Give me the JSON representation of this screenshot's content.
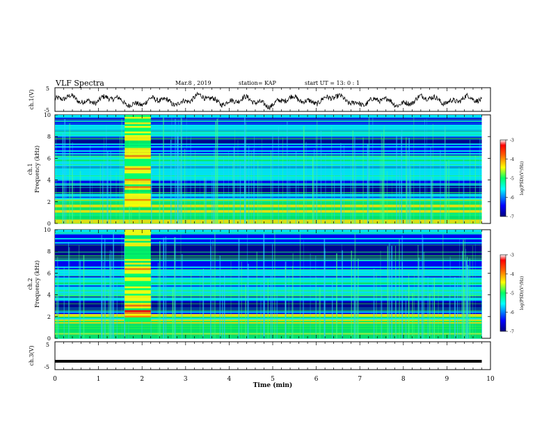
{
  "header": {
    "title": "VLF Spectra",
    "date": "Mar.8 , 2019",
    "station": "station= KAP",
    "start": "start UT = 13: 0 : 1"
  },
  "colors": {
    "spectrogram_background": "#0a1f8f",
    "trace": "#000000",
    "colormap": [
      "#00008f",
      "#0000ff",
      "#00ffff",
      "#00ff66",
      "#ffff00",
      "#ff8000",
      "#ff0000",
      "#ffffff"
    ]
  },
  "chart_data": [
    {
      "type": "line",
      "name": "ch1-waveform",
      "ylabel": "ch.1(V)",
      "ylim": [
        -5,
        5
      ],
      "yticks": [
        "5",
        "-5"
      ],
      "x_range": [
        0,
        10
      ],
      "x_end": 9.8,
      "description_values": "noisy oscillating voltage around -0.5 V with amplitude about 2 V"
    },
    {
      "type": "heatmap",
      "name": "ch1-spectrogram",
      "ylabel": "Frequency (kHz)",
      "channel_label": "ch.1",
      "ylim": [
        0,
        10
      ],
      "yticks": [
        "0",
        "2",
        "4",
        "6",
        "8",
        "10"
      ],
      "x_range": [
        0,
        10
      ],
      "x_end": 9.8,
      "colorbar": {
        "label": "log(PSD)(V²/Hz)",
        "range": [
          -7,
          -3
        ],
        "ticks": [
          "-3",
          "-4",
          "-5",
          "-6",
          "-7"
        ]
      },
      "bright_interval_min": [
        1.6,
        2.2
      ],
      "dark_bands_khz": [
        [
          2.7,
          3.4
        ],
        [
          7.3,
          7.8
        ]
      ]
    },
    {
      "type": "heatmap",
      "name": "ch2-spectrogram",
      "ylabel": "Frequency (kHz)",
      "channel_label": "ch.2",
      "ylim": [
        0,
        10
      ],
      "yticks": [
        "0",
        "2",
        "4",
        "6",
        "8",
        "10"
      ],
      "x_range": [
        0,
        10
      ],
      "x_end": 9.8,
      "colorbar": {
        "label": "log(PSD)(V²/Hz)",
        "range": [
          -7,
          -3
        ],
        "ticks": [
          "-3",
          "-4",
          "-5",
          "-6",
          "-7"
        ]
      },
      "bright_interval_min": [
        1.6,
        2.2
      ],
      "dark_bands_khz": [
        [
          2.5,
          3.3
        ],
        [
          7.2,
          8.6
        ]
      ]
    },
    {
      "type": "line",
      "name": "ch3-waveform",
      "ylabel": "ch.3(V)",
      "ylim": [
        -5,
        5
      ],
      "yticks": [
        "5",
        "-5"
      ],
      "x_range": [
        0,
        10
      ],
      "x_end": 9.8,
      "constant_value": -2
    }
  ],
  "xaxis": {
    "label": "Time (min)",
    "ticks": [
      "0",
      "1",
      "2",
      "3",
      "4",
      "5",
      "6",
      "7",
      "8",
      "9",
      "10"
    ]
  }
}
